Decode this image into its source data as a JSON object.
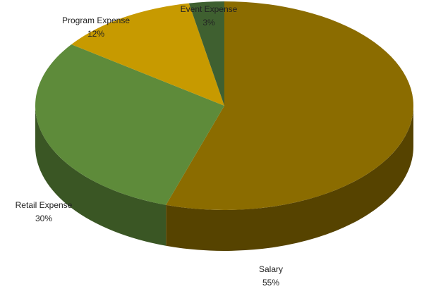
{
  "chart_data": {
    "type": "pie",
    "categories": [
      "Salary",
      "Retail Expense",
      "Program Expense",
      "Event Expense"
    ],
    "values": [
      55,
      30,
      12,
      3
    ],
    "value_labels": [
      "55%",
      "30%",
      "12%",
      "3%"
    ],
    "colors": [
      "#8b6c00",
      "#5e8b3a",
      "#c79a00",
      "#3f6030"
    ]
  }
}
